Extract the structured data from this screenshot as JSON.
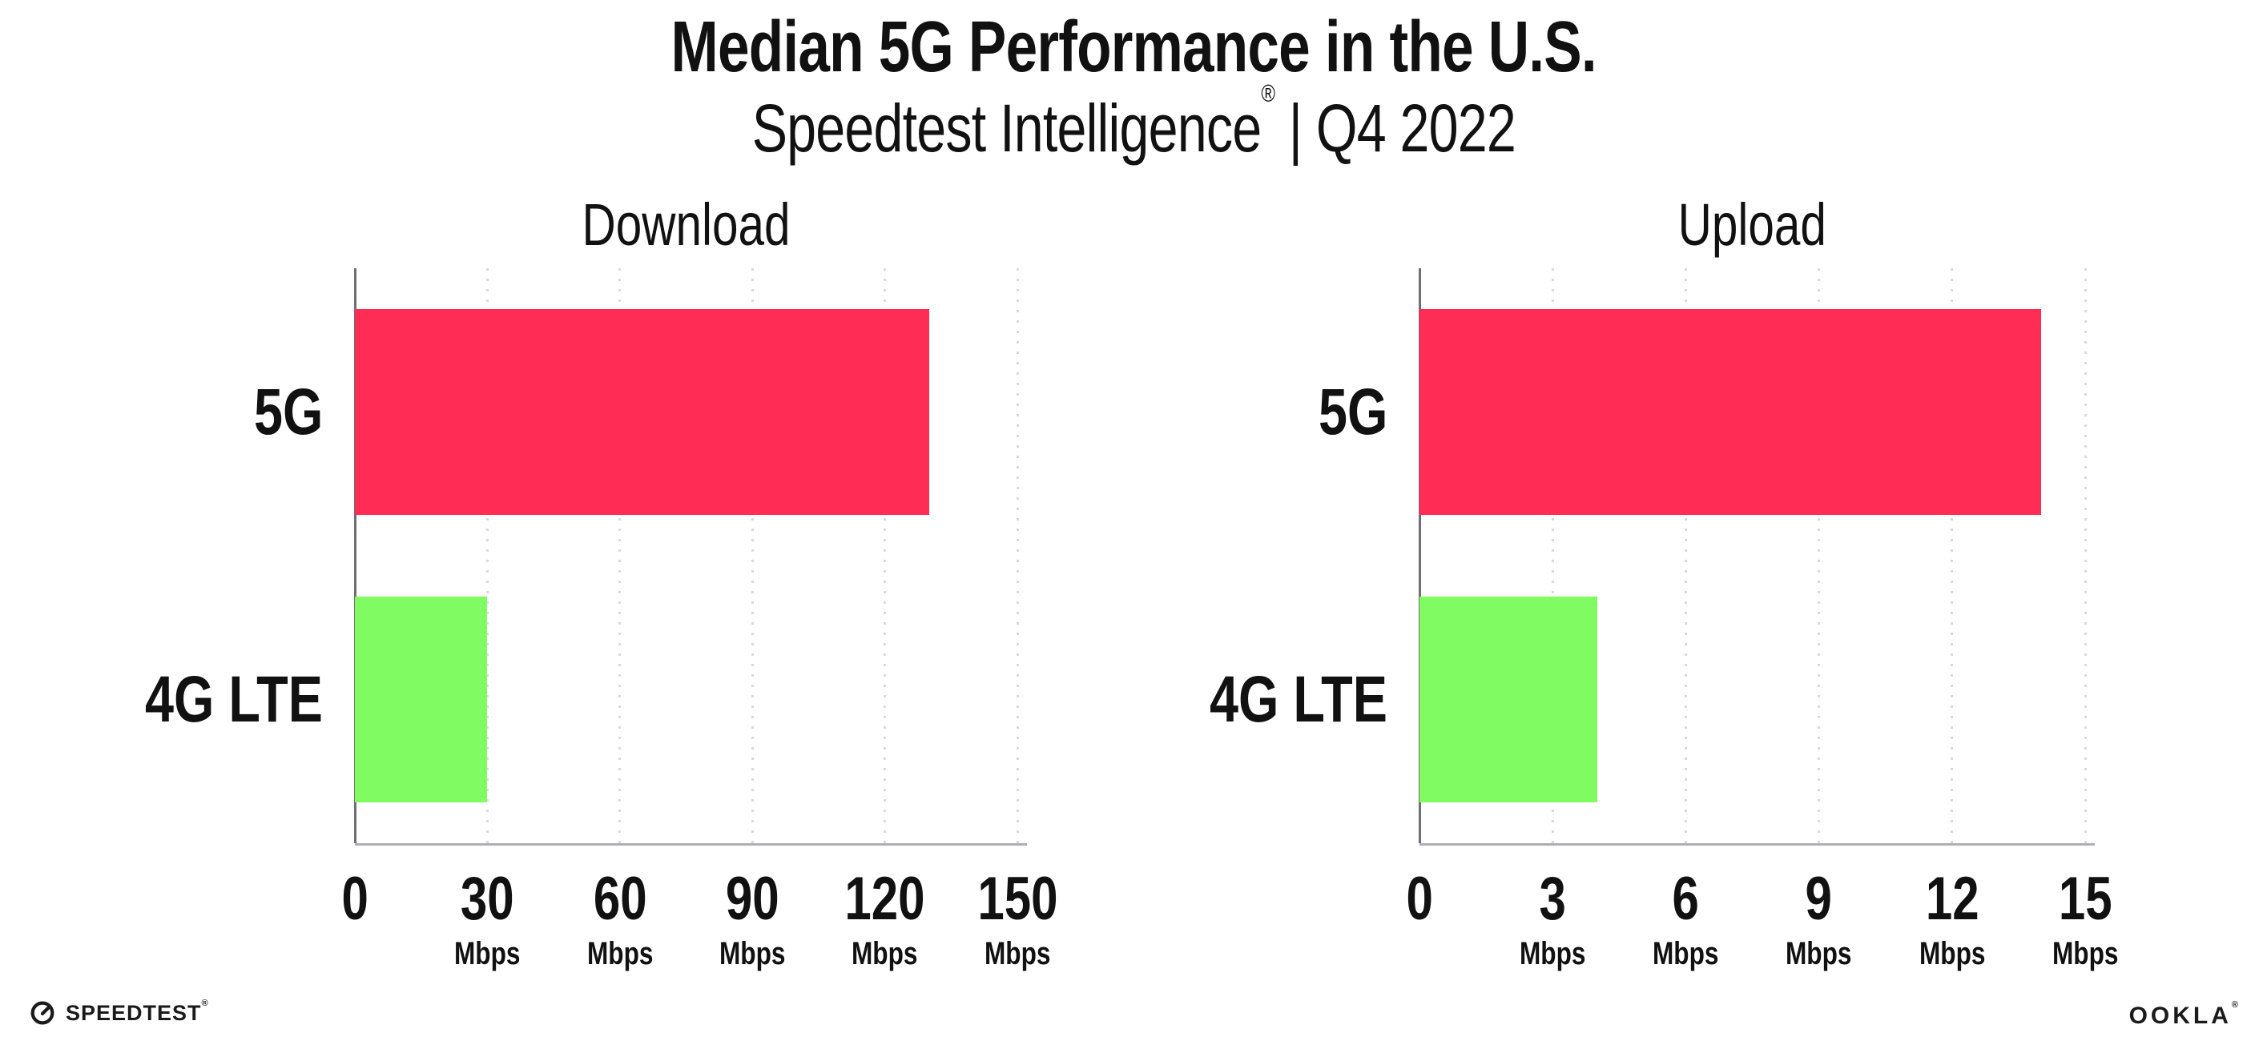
{
  "header": {
    "title": "Median 5G Performance in the U.S.",
    "subtitle_brand": "Speedtest Intelligence",
    "subtitle_reg": "®",
    "subtitle_rest": " | Q4 2022"
  },
  "chart_data": [
    {
      "type": "bar",
      "orientation": "horizontal",
      "title": "Download",
      "categories": [
        "5G",
        "4G LTE"
      ],
      "values": [
        130,
        30
      ],
      "unit": "Mbps",
      "xlim": [
        0,
        150
      ],
      "xticks": [
        0,
        30,
        60,
        90,
        120,
        150
      ],
      "grid": "dotted-vertical",
      "legend": "none",
      "bar_colors": [
        "#FF2D55",
        "#80FB61"
      ],
      "ticks": [
        {
          "v": "0",
          "u": ""
        },
        {
          "v": "30",
          "u": "Mbps"
        },
        {
          "v": "60",
          "u": "Mbps"
        },
        {
          "v": "90",
          "u": "Mbps"
        },
        {
          "v": "120",
          "u": "Mbps"
        },
        {
          "v": "150",
          "u": "Mbps"
        }
      ]
    },
    {
      "type": "bar",
      "orientation": "horizontal",
      "title": "Upload",
      "categories": [
        "5G",
        "4G LTE"
      ],
      "values": [
        14,
        4
      ],
      "unit": "Mbps",
      "xlim": [
        0,
        15
      ],
      "xticks": [
        0,
        3,
        6,
        9,
        12,
        15
      ],
      "grid": "dotted-vertical",
      "legend": "none",
      "bar_colors": [
        "#FF2D55",
        "#80FB61"
      ],
      "ticks": [
        {
          "v": "0",
          "u": ""
        },
        {
          "v": "3",
          "u": "Mbps"
        },
        {
          "v": "6",
          "u": "Mbps"
        },
        {
          "v": "9",
          "u": "Mbps"
        },
        {
          "v": "12",
          "u": "Mbps"
        },
        {
          "v": "15",
          "u": "Mbps"
        }
      ]
    }
  ],
  "footer": {
    "speedtest_label": "SPEEDTEST",
    "speedtest_reg": "®",
    "ookla_label": "OOKLA",
    "ookla_reg": "®"
  },
  "colors": {
    "bar_5g": "#FF2D55",
    "bar_4g_lte": "#80FB61",
    "gridline": "#D8D8E2",
    "axis_vertical": "#6E6E76",
    "axis_horizontal": "#AEAEB6",
    "text": "#111111",
    "logo": "#1A1A1A"
  }
}
